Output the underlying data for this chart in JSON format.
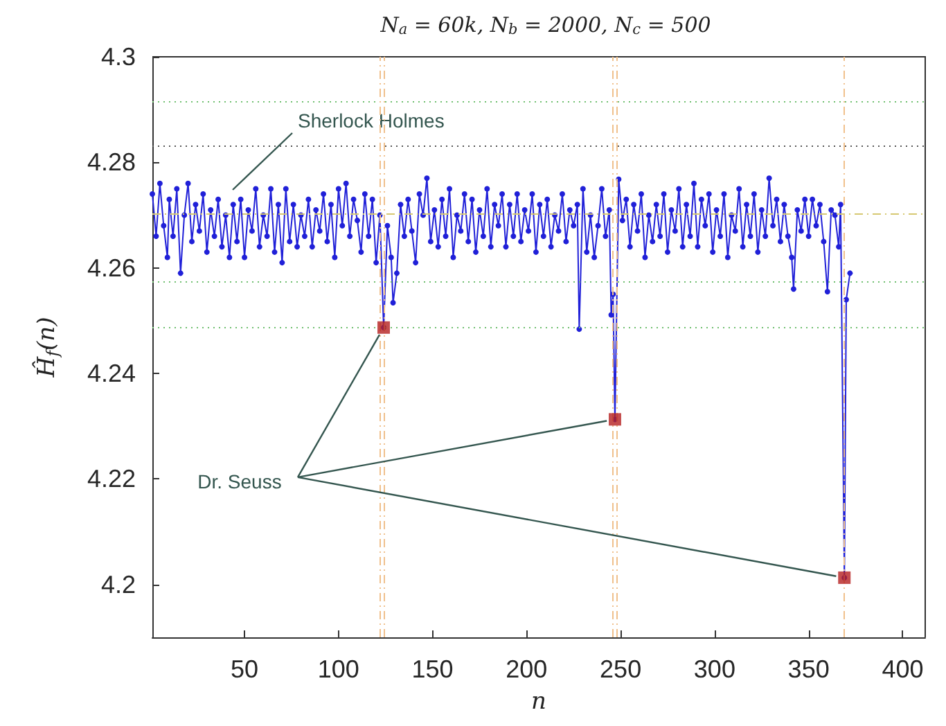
{
  "chart_data": {
    "type": "line",
    "title": "N$_{a}$ = 60k, N$_{b}$ = 2000, N$_{c}$ = 500",
    "xlabel": "n",
    "ylabel": "Ĥ$_{f}$(n)",
    "xlim": [
      1,
      412
    ],
    "xticks": [
      50,
      100,
      150,
      200,
      250,
      300,
      350,
      400
    ],
    "ylim": [
      4.19,
      4.3
    ],
    "yticks": [
      4.2,
      4.22,
      4.24,
      4.26,
      4.28,
      4.3
    ],
    "grid": false,
    "series": [
      {
        "color": "#2020d8",
        "marker": "circle",
        "line_style": "solid",
        "x": [
          1,
          3,
          5,
          7,
          9,
          10,
          12,
          14,
          16,
          18,
          20,
          22,
          24,
          26,
          28,
          30,
          32,
          34,
          36,
          38,
          40,
          42,
          44,
          46,
          48,
          50,
          52,
          54,
          56,
          58,
          60,
          62,
          64,
          66,
          68,
          70,
          72,
          74,
          76,
          78,
          80,
          82,
          84,
          86,
          88,
          90,
          92,
          94,
          96,
          98,
          100,
          102,
          104,
          106,
          108,
          110,
          112,
          114,
          116,
          118,
          120,
          122,
          124,
          126,
          128,
          129,
          131,
          133,
          135,
          137,
          139,
          141,
          143,
          145,
          147,
          149,
          151,
          153,
          155,
          157,
          159,
          161,
          163,
          165,
          167,
          169,
          171,
          173,
          175,
          177,
          179,
          181,
          183,
          185,
          187,
          189,
          191,
          193,
          195,
          197,
          199,
          201,
          203,
          205,
          207,
          209,
          211,
          213,
          215,
          217,
          219,
          221,
          223,
          225,
          227,
          228,
          230,
          232,
          234,
          236,
          238,
          240,
          242,
          244,
          245,
          246,
          247,
          249,
          251,
          253,
          255,
          257,
          259,
          261,
          263,
          265,
          267,
          269,
          271,
          273,
          275,
          277,
          279,
          281,
          283,
          285,
          287,
          289,
          291,
          293,
          295,
          297,
          299,
          301,
          303,
          305,
          307,
          309,
          311,
          313,
          315,
          317,
          319,
          321,
          323,
          325,
          327,
          329,
          331,
          333,
          335,
          337,
          339,
          341,
          342,
          344,
          346,
          348,
          350,
          352,
          354,
          356,
          358,
          360,
          362,
          364,
          366,
          367,
          369,
          370,
          372
        ],
        "values": [
          4.274,
          4.266,
          4.276,
          4.268,
          4.262,
          4.273,
          4.266,
          4.275,
          4.259,
          4.27,
          4.276,
          4.265,
          4.272,
          4.267,
          4.274,
          4.263,
          4.271,
          4.266,
          4.273,
          4.264,
          4.27,
          4.262,
          4.272,
          4.265,
          4.273,
          4.262,
          4.271,
          4.267,
          4.275,
          4.264,
          4.27,
          4.266,
          4.275,
          4.263,
          4.272,
          4.261,
          4.275,
          4.265,
          4.272,
          4.264,
          4.27,
          4.266,
          4.273,
          4.264,
          4.271,
          4.267,
          4.274,
          4.265,
          4.272,
          4.262,
          4.275,
          4.268,
          4.276,
          4.266,
          4.273,
          4.269,
          4.263,
          4.274,
          4.266,
          4.273,
          4.261,
          4.27,
          4.2487,
          4.268,
          4.262,
          4.2534,
          4.259,
          4.272,
          4.266,
          4.273,
          4.267,
          4.261,
          4.274,
          4.27,
          4.277,
          4.265,
          4.271,
          4.264,
          4.273,
          4.266,
          4.275,
          4.262,
          4.27,
          4.267,
          4.274,
          4.265,
          4.273,
          4.263,
          4.271,
          4.266,
          4.275,
          4.264,
          4.272,
          4.268,
          4.274,
          4.264,
          4.272,
          4.266,
          4.274,
          4.265,
          4.271,
          4.267,
          4.274,
          4.263,
          4.272,
          4.266,
          4.273,
          4.264,
          4.27,
          4.267,
          4.274,
          4.265,
          4.271,
          4.268,
          4.272,
          4.2484,
          4.275,
          4.263,
          4.27,
          4.262,
          4.268,
          4.275,
          4.266,
          4.271,
          4.2511,
          4.255,
          4.2313,
          4.2768,
          4.269,
          4.273,
          4.264,
          4.272,
          4.267,
          4.274,
          4.262,
          4.27,
          4.265,
          4.272,
          4.266,
          4.274,
          4.263,
          4.271,
          4.267,
          4.275,
          4.264,
          4.272,
          4.266,
          4.276,
          4.264,
          4.273,
          4.268,
          4.274,
          4.263,
          4.271,
          4.266,
          4.274,
          4.262,
          4.27,
          4.267,
          4.275,
          4.264,
          4.272,
          4.266,
          4.274,
          4.263,
          4.271,
          4.266,
          4.277,
          4.268,
          4.273,
          4.265,
          4.272,
          4.266,
          4.262,
          4.256,
          4.271,
          4.267,
          4.273,
          4.266,
          4.273,
          4.268,
          4.272,
          4.265,
          4.2555,
          4.271,
          4.27,
          4.264,
          4.272,
          4.2013,
          4.254,
          4.259
        ]
      },
      {
        "type": "scatter",
        "color": "#b52020",
        "marker": "square",
        "x": [
          124,
          247,
          369
        ],
        "values": [
          4.2487,
          4.2313,
          4.2013
        ]
      }
    ],
    "ref_lines": [
      {
        "axis": "y",
        "value": 4.2916,
        "color": "#6fbf6f",
        "line_style": "dotted"
      },
      {
        "axis": "y",
        "value": 4.2832,
        "color": "#555555",
        "line_style": "dotted"
      },
      {
        "axis": "y",
        "value": 4.2703,
        "color": "#d6c872",
        "line_style": "dashed"
      },
      {
        "axis": "y",
        "value": 4.2574,
        "color": "#6fbf6f",
        "line_style": "dotted"
      },
      {
        "axis": "y",
        "value": 4.2487,
        "color": "#6fbf6f",
        "line_style": "dotted"
      },
      {
        "axis": "x",
        "value": 122,
        "color": "#f0c08c",
        "line_style": "dashed"
      },
      {
        "axis": "x",
        "value": 124,
        "color": "#f0c08c",
        "line_style": "dashed"
      },
      {
        "axis": "x",
        "value": 246,
        "color": "#f0c08c",
        "line_style": "dashed"
      },
      {
        "axis": "x",
        "value": 248,
        "color": "#f0c08c",
        "line_style": "dashed"
      },
      {
        "axis": "x",
        "value": 369,
        "color": "#f0c08c",
        "line_style": "dashed"
      }
    ],
    "annotations": [
      "Sherlock Holmes",
      {
        "text": "Dr. Seuss",
        "x": 124,
        "y": 4.2487
      }
    ]
  }
}
